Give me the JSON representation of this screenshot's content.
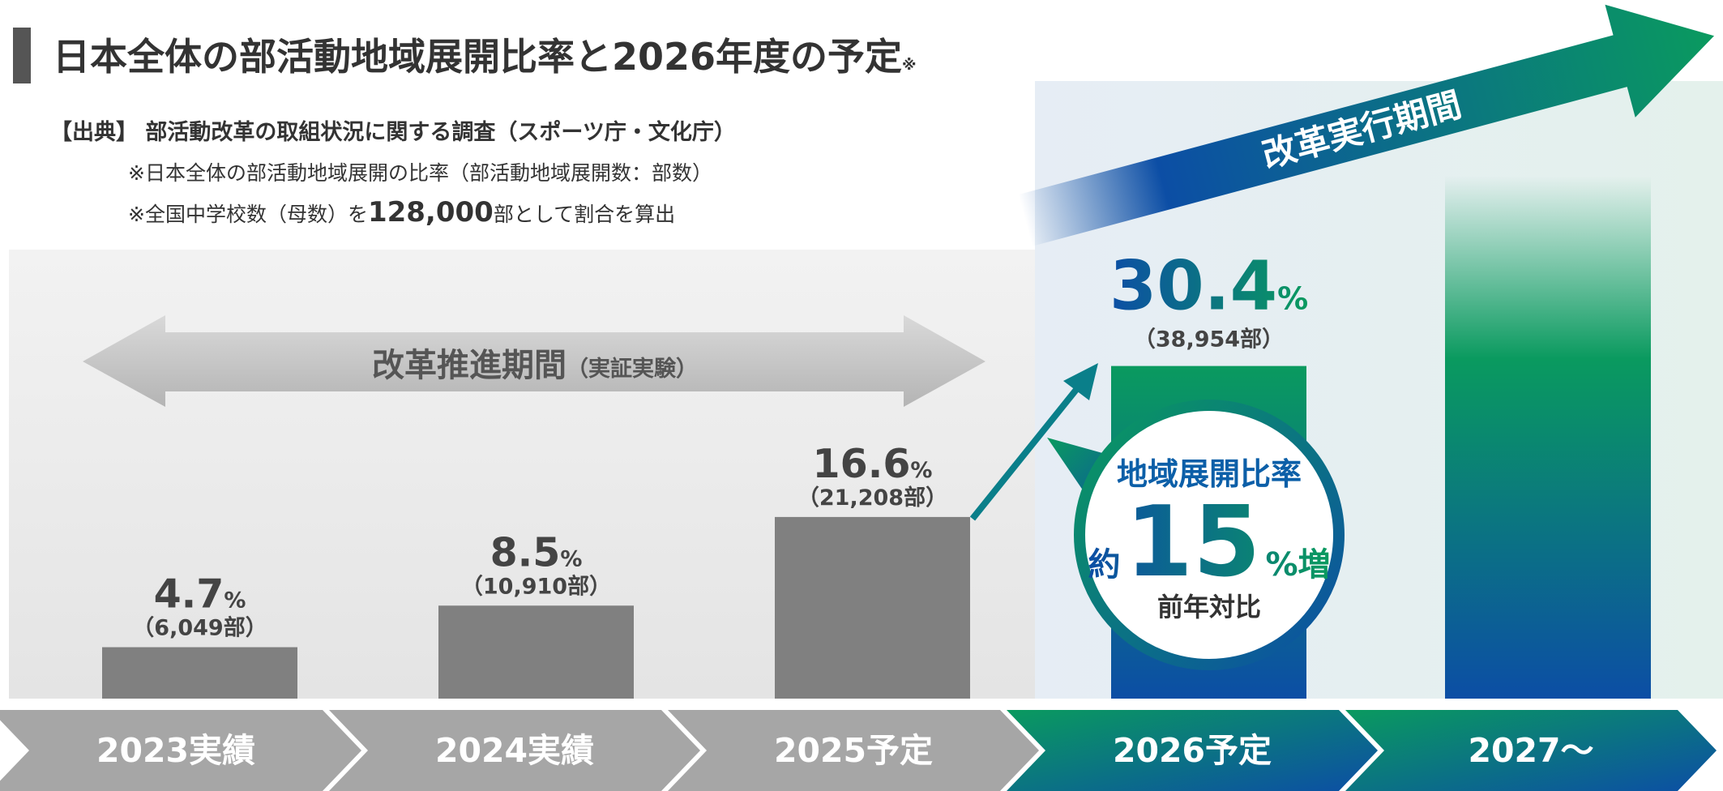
{
  "chart_data": {
    "type": "bar",
    "title": "日本全体の部活動地域展開比率と2026年度の予定",
    "title_note": "※",
    "source": "【出典】 部活動改革の取組状況に関する調査（スポーツ庁・文化庁）",
    "note1": "※日本全体の部活動地域展開の比率（部活動地域展開数：部数）",
    "note2_prefix": "※全国中学校数（母数）を",
    "note2_number": "128,000",
    "note2_suffix": "部として割合を算出",
    "period1": "改革推進期間",
    "period1_note": "（実証実験）",
    "period2": "改革実行期間",
    "callout": {
      "heading": "地域展開比率",
      "prefix": "約",
      "number": "15",
      "suffix": "%増",
      "footer": "前年対比"
    },
    "categories": [
      "2023実績",
      "2024実績",
      "2025予定",
      "2026予定",
      "2027〜"
    ],
    "values": [
      4.7,
      8.5,
      16.6,
      30.4,
      null
    ],
    "value_labels": [
      "4.7",
      "8.5",
      "16.6",
      "30.4",
      null
    ],
    "unit": "%",
    "count_labels": [
      "（6,049部）",
      "（10,910部）",
      "（21,208部）",
      "（38,954部）",
      null
    ],
    "colors": [
      "#808080",
      "#808080",
      "#808080",
      "#0a9a5f"
    ],
    "colors_bottom": [
      "#808080",
      "#808080",
      "#808080",
      "#0c4ea5"
    ],
    "ylim": [
      0,
      40
    ]
  }
}
